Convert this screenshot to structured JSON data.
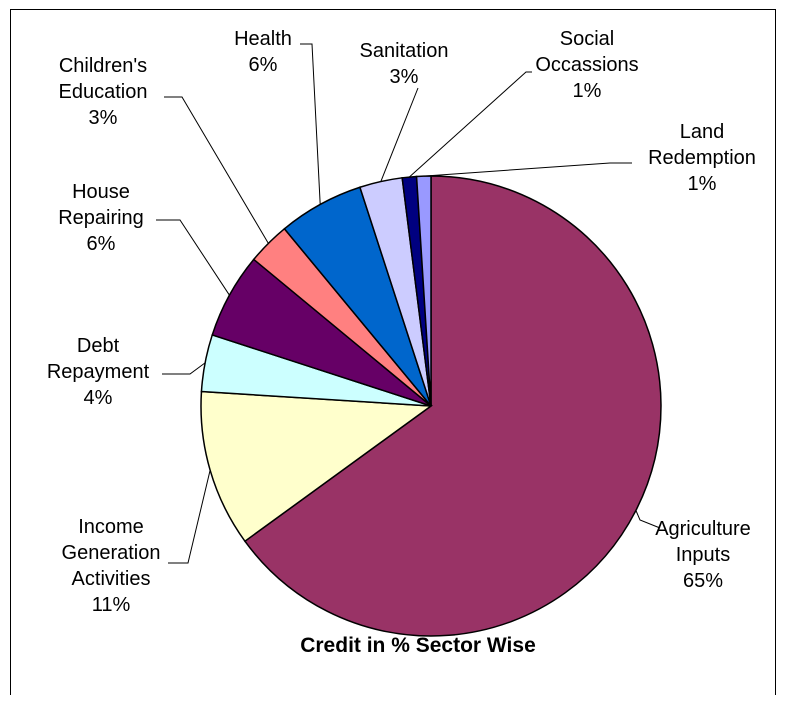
{
  "chart_data": {
    "type": "pie",
    "title": "Credit in % Sector Wise",
    "start_angle_deg": 0,
    "direction": "clockwise",
    "slices": [
      {
        "label": [
          "Agriculture",
          "Inputs"
        ],
        "value": 65,
        "value_label": "65%",
        "color": "#993366"
      },
      {
        "label": [
          "Income",
          "Generation",
          "Activities"
        ],
        "value": 11,
        "value_label": "11%",
        "color": "#FFFFCC"
      },
      {
        "label": [
          "Debt",
          "Repayment"
        ],
        "value": 4,
        "value_label": "4%",
        "color": "#CCFFFF"
      },
      {
        "label": [
          "House",
          "Repairing"
        ],
        "value": 6,
        "value_label": "6%",
        "color": "#660066"
      },
      {
        "label": [
          "Children's",
          "Education"
        ],
        "value": 3,
        "value_label": "3%",
        "color": "#FF8080"
      },
      {
        "label": [
          "Health"
        ],
        "value": 6,
        "value_label": "6%",
        "color": "#0066CC"
      },
      {
        "label": [
          "Sanitation"
        ],
        "value": 3,
        "value_label": "3%",
        "color": "#CCCCFF"
      },
      {
        "label": [
          "Social",
          "Occassions"
        ],
        "value": 1,
        "value_label": "1%",
        "color": "#000080"
      },
      {
        "label": [
          "Land",
          "Redemption"
        ],
        "value": 1,
        "value_label": "1%",
        "color": "#9999FF"
      }
    ]
  }
}
